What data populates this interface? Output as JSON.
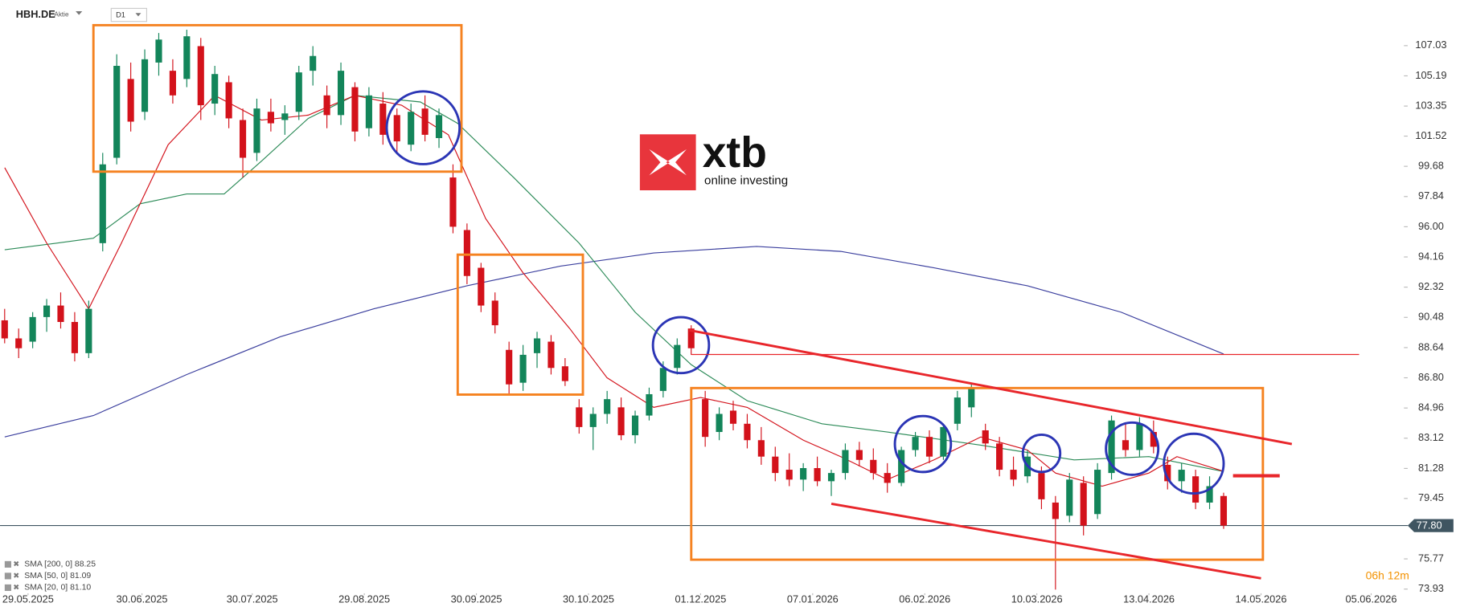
{
  "header": {
    "symbol": "HBH.DE",
    "kind": "Aktie",
    "timeframe": "D1"
  },
  "logo": {
    "name": "xtb",
    "tagline": "online investing"
  },
  "countdown": "06h 12m",
  "chart_data": {
    "type": "candlestick",
    "up_color": "#13855a",
    "down_color": "#d3121b",
    "xlim": [
      -0.33,
      99.67
    ],
    "xticks": [
      {
        "value": 1.67,
        "label": "29.05.2025"
      },
      {
        "value": 9.8,
        "label": "30.06.2025"
      },
      {
        "value": 17.67,
        "label": "30.07.2025"
      },
      {
        "value": 25.67,
        "label": "29.08.2025"
      },
      {
        "value": 33.67,
        "label": "30.09.2025"
      },
      {
        "value": 41.67,
        "label": "30.10.2025"
      },
      {
        "value": 49.67,
        "label": "01.12.2025"
      },
      {
        "value": 57.67,
        "label": "07.01.2026"
      },
      {
        "value": 65.67,
        "label": "06.02.2026"
      },
      {
        "value": 73.67,
        "label": "10.03.2026"
      },
      {
        "value": 81.67,
        "label": "13.04.2026"
      },
      {
        "value": 89.67,
        "label": "14.05.2026"
      },
      {
        "value": 97.53,
        "label": "05.06.2026"
      }
    ],
    "ylim": [
      72.88,
      109.81
    ],
    "yticks": [
      107.03,
      105.19,
      103.35,
      101.52,
      99.68,
      97.84,
      {
        "value": 96,
        "label": "96.00"
      },
      94.16,
      92.32,
      90.48,
      88.64,
      {
        "value": 86.8,
        "label": "86.80"
      },
      84.96,
      83.12,
      81.28,
      79.45,
      75.77,
      73.93
    ],
    "last_price": {
      "value": 77.8,
      "label": "77.80"
    },
    "ohlc": [
      [
        90.3,
        91.0,
        88.9,
        89.2
      ],
      [
        89.2,
        89.8,
        88.0,
        88.6
      ],
      [
        89.0,
        90.8,
        88.6,
        90.5
      ],
      [
        90.5,
        91.6,
        89.6,
        91.2
      ],
      [
        91.2,
        92.0,
        89.8,
        90.2
      ],
      [
        90.2,
        90.8,
        87.8,
        88.3
      ],
      [
        88.3,
        91.5,
        88.0,
        91.0
      ],
      [
        95.0,
        100.5,
        94.5,
        99.8
      ],
      [
        100.2,
        106.5,
        99.8,
        105.8
      ],
      [
        105.0,
        106.0,
        101.8,
        102.4
      ],
      [
        103.0,
        106.8,
        102.5,
        106.2
      ],
      [
        106.0,
        107.8,
        105.2,
        107.4
      ],
      [
        105.5,
        106.2,
        103.5,
        104.0
      ],
      [
        105.0,
        108.0,
        104.5,
        107.6
      ],
      [
        107.0,
        107.5,
        102.5,
        103.4
      ],
      [
        103.5,
        105.8,
        102.8,
        105.3
      ],
      [
        104.8,
        105.2,
        102.0,
        102.6
      ],
      [
        102.5,
        103.2,
        99.0,
        100.2
      ],
      [
        100.5,
        103.8,
        100.0,
        103.2
      ],
      [
        103.0,
        103.8,
        101.8,
        102.3
      ],
      [
        102.5,
        103.4,
        101.6,
        102.9
      ],
      [
        103.0,
        105.8,
        102.5,
        105.4
      ],
      [
        105.5,
        107.0,
        104.6,
        106.4
      ],
      [
        104.0,
        104.6,
        102.0,
        102.8
      ],
      [
        102.8,
        106.0,
        102.2,
        105.5
      ],
      [
        104.5,
        104.8,
        101.2,
        101.8
      ],
      [
        102.0,
        104.5,
        101.5,
        104.0
      ],
      [
        103.5,
        104.2,
        101.0,
        101.6
      ],
      [
        102.8,
        103.2,
        100.5,
        101.2
      ],
      [
        101.0,
        103.5,
        100.6,
        103.0
      ],
      [
        103.2,
        104.0,
        101.2,
        101.6
      ],
      [
        101.4,
        103.2,
        100.8,
        102.8
      ],
      [
        99.0,
        99.8,
        95.6,
        96.0
      ],
      [
        95.8,
        96.2,
        92.5,
        93.0
      ],
      [
        93.5,
        93.8,
        90.8,
        91.2
      ],
      [
        91.5,
        92.0,
        89.5,
        90.0
      ],
      [
        88.5,
        89.0,
        85.8,
        86.4
      ],
      [
        86.5,
        88.8,
        86.0,
        88.2
      ],
      [
        88.3,
        89.6,
        87.4,
        89.2
      ],
      [
        89.0,
        89.4,
        87.0,
        87.4
      ],
      [
        87.5,
        88.0,
        86.3,
        86.6
      ],
      [
        85.0,
        85.5,
        83.4,
        83.8
      ],
      [
        83.8,
        85.0,
        82.4,
        84.6
      ],
      [
        84.6,
        86.0,
        84.0,
        85.5
      ],
      [
        85.0,
        85.6,
        83.0,
        83.3
      ],
      [
        83.3,
        84.8,
        82.8,
        84.5
      ],
      [
        84.5,
        86.2,
        84.2,
        85.8
      ],
      [
        86.0,
        87.8,
        85.6,
        87.4
      ],
      [
        87.4,
        89.2,
        87.0,
        88.8
      ],
      [
        89.8,
        90.0,
        88.2,
        88.6
      ],
      [
        85.5,
        86.0,
        82.6,
        83.2
      ],
      [
        83.5,
        85.0,
        83.0,
        84.6
      ],
      [
        84.8,
        85.4,
        83.6,
        84.0
      ],
      [
        84.0,
        84.6,
        82.5,
        83.0
      ],
      [
        83.0,
        83.8,
        81.5,
        82.0
      ],
      [
        82.0,
        82.6,
        80.5,
        81.0
      ],
      [
        81.2,
        82.2,
        80.2,
        80.6
      ],
      [
        80.6,
        81.6,
        79.9,
        81.3
      ],
      [
        81.3,
        82.0,
        80.2,
        80.5
      ],
      [
        80.5,
        81.2,
        79.6,
        81.0
      ],
      [
        81.0,
        82.8,
        80.6,
        82.4
      ],
      [
        82.4,
        82.9,
        81.4,
        81.8
      ],
      [
        81.8,
        82.5,
        80.6,
        81.0
      ],
      [
        81.0,
        81.6,
        79.8,
        80.4
      ],
      [
        80.4,
        82.6,
        80.2,
        82.4
      ],
      [
        82.4,
        83.5,
        82.0,
        83.2
      ],
      [
        83.2,
        83.6,
        81.6,
        82.0
      ],
      [
        82.0,
        84.0,
        81.8,
        83.8
      ],
      [
        84.0,
        86.0,
        83.6,
        85.6
      ],
      [
        85.0,
        86.4,
        84.4,
        86.2
      ],
      [
        83.6,
        84.0,
        82.4,
        82.8
      ],
      [
        82.8,
        83.2,
        80.8,
        81.2
      ],
      [
        81.2,
        82.0,
        80.2,
        80.6
      ],
      [
        80.8,
        82.4,
        80.4,
        82.0
      ],
      [
        81.0,
        81.4,
        78.8,
        79.4
      ],
      [
        79.2,
        79.6,
        73.9,
        78.2
      ],
      [
        78.4,
        81.0,
        78.0,
        80.6
      ],
      [
        80.4,
        80.8,
        77.2,
        77.8
      ],
      [
        78.5,
        81.6,
        78.2,
        81.2
      ],
      [
        81.0,
        84.5,
        80.6,
        84.2
      ],
      [
        83.0,
        84.0,
        82.0,
        82.4
      ],
      [
        82.4,
        84.4,
        82.0,
        84.0
      ],
      [
        83.5,
        84.2,
        82.2,
        82.6
      ],
      [
        81.5,
        82.0,
        80.0,
        80.5
      ],
      [
        80.5,
        81.6,
        79.8,
        81.2
      ],
      [
        80.8,
        81.2,
        78.8,
        79.2
      ],
      [
        79.2,
        80.8,
        78.8,
        80.2
      ],
      [
        79.6,
        79.8,
        77.6,
        77.8
      ]
    ],
    "lines": [
      {
        "name": "SMA [200, 0] 88.25",
        "color": "#3b3f9e",
        "x": [
          0,
          6.33,
          13,
          19.67,
          26.33,
          33,
          39.67,
          46.33,
          53.67,
          59.67,
          66.33,
          73,
          79.67,
          87
        ],
        "values": [
          83.2,
          84.5,
          87.0,
          89.3,
          91.0,
          92.4,
          93.6,
          94.4,
          94.8,
          94.5,
          93.5,
          92.4,
          90.8,
          88.25
        ]
      },
      {
        "name": "SMA [50, 0] 81.09",
        "color": "#2b8a57",
        "x": [
          0,
          3.67,
          6.33,
          9.67,
          13,
          15.67,
          18.33,
          21.67,
          25,
          29.67,
          32.33,
          36.33,
          41,
          45,
          49,
          53,
          58.33,
          63,
          69.67,
          76.33,
          81.67,
          87
        ],
        "values": [
          94.6,
          95.0,
          95.3,
          97.4,
          98.0,
          98.0,
          100.0,
          102.6,
          104.0,
          103.6,
          102.3,
          99.0,
          95.0,
          90.8,
          87.6,
          85.4,
          84.0,
          83.5,
          82.7,
          81.8,
          82.0,
          81.09
        ]
      },
      {
        "name": "SMA [20, 0] 81.10",
        "color": "#d3121b",
        "x": [
          0,
          3,
          6,
          8.33,
          11.67,
          15,
          18.33,
          21.67,
          25,
          28.33,
          31.67,
          34.33,
          37,
          40.33,
          43,
          46.33,
          49.67,
          53,
          57,
          59.67,
          63,
          66.33,
          69.67,
          73,
          75,
          78.33,
          81.67,
          83.67,
          87
        ],
        "values": [
          99.6,
          95.0,
          91.0,
          95.0,
          101.0,
          104.0,
          102.5,
          102.8,
          104.0,
          103.4,
          101.6,
          96.5,
          93.2,
          89.8,
          86.8,
          85.0,
          85.6,
          85.0,
          83.0,
          82.0,
          80.6,
          81.8,
          83.2,
          82.4,
          81.0,
          80.2,
          81.0,
          82.0,
          81.1
        ]
      }
    ]
  }
}
